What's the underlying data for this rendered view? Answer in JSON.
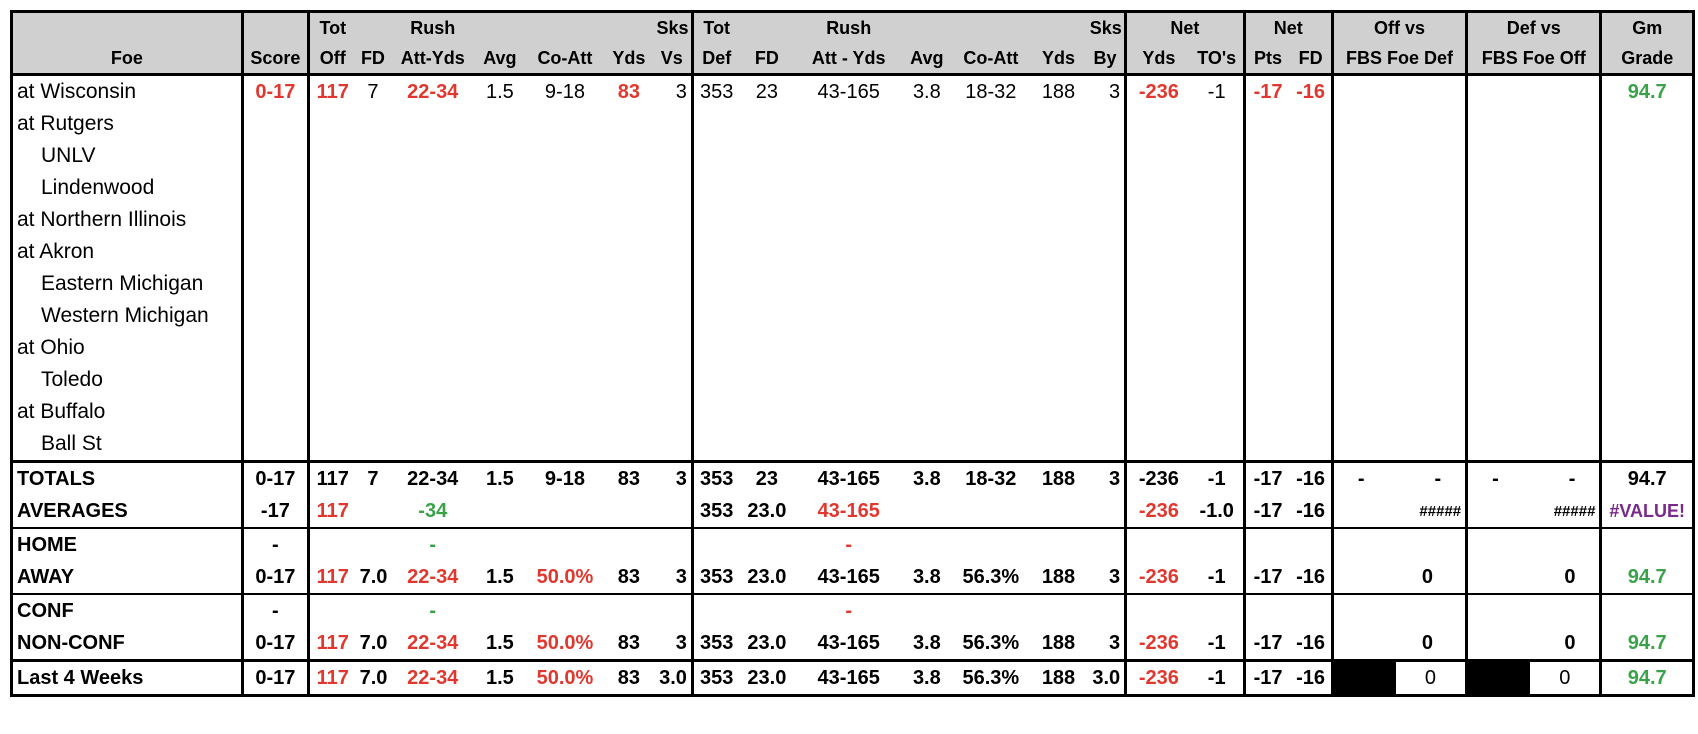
{
  "headers": {
    "top": {
      "tot1": "Tot",
      "rush1": "Rush",
      "sks1": "Sks",
      "tot2": "Tot",
      "rush2": "Rush",
      "sks2": "Sks",
      "net1": "Net",
      "net2": "Net",
      "offvs": "Off vs",
      "defvs": "Def vs",
      "gm": "Gm"
    },
    "bottom": {
      "foe": "Foe",
      "score": "Score",
      "off": "Off",
      "fd1": "FD",
      "attyds1": "Att-Yds",
      "avg1": "Avg",
      "coatt1": "Co-Att",
      "yds1": "Yds",
      "vs": "Vs",
      "def": "Def",
      "fd2": "FD",
      "attyds2": "Att - Yds",
      "avg2": "Avg",
      "coatt2": "Co-Att",
      "yds2": "Yds",
      "by": "By",
      "netyds": "Yds",
      "tos": "TO's",
      "pts": "Pts",
      "fd3": "FD",
      "fbsdef": "FBS Foe Def",
      "fbsoff": "FBS Foe Off",
      "grade": "Grade"
    }
  },
  "games": [
    {
      "foe": "at Wisconsin",
      "indent": false,
      "score": "0-17",
      "off": "117",
      "fd": "7",
      "rush": "22-34",
      "avg": "1.5",
      "coatt": "9-18",
      "yds": "83",
      "sks": "3",
      "def": "353",
      "dfd": "23",
      "drush": "43-165",
      "davg": "3.8",
      "dcoatt": "18-32",
      "dyds": "188",
      "dsks": "3",
      "netyds": "-236",
      "tos": "-1",
      "pts": "-17",
      "netfd": "-16",
      "grade": "94.7"
    },
    {
      "foe": "at Rutgers",
      "indent": false
    },
    {
      "foe": "UNLV",
      "indent": true
    },
    {
      "foe": "Lindenwood",
      "indent": true
    },
    {
      "foe": "at Northern Illinois",
      "indent": false
    },
    {
      "foe": "at Akron",
      "indent": false
    },
    {
      "foe": "Eastern Michigan",
      "indent": true
    },
    {
      "foe": "Western Michigan",
      "indent": true
    },
    {
      "foe": "at Ohio",
      "indent": false
    },
    {
      "foe": "Toledo",
      "indent": true
    },
    {
      "foe": "at Buffalo",
      "indent": false
    },
    {
      "foe": "Ball St",
      "indent": true
    }
  ],
  "totals": {
    "label": "TOTALS",
    "score": "0-17",
    "off": "117",
    "fd": "7",
    "rush": "22-34",
    "avg": "1.5",
    "coatt": "9-18",
    "yds": "83",
    "sks": "3",
    "def": "353",
    "dfd": "23",
    "drush": "43-165",
    "davg": "3.8",
    "dcoatt": "18-32",
    "dyds": "188",
    "dsks": "3",
    "netyds": "-236",
    "tos": "-1",
    "pts": "-17",
    "netfd": "-16",
    "offa": "-",
    "offb": "-",
    "defa": "-",
    "defb": "-",
    "grade": "94.7"
  },
  "averages": {
    "label": "AVERAGES",
    "score": "-17",
    "off": "117",
    "rush": "-34",
    "def": "353",
    "dfd": "23.0",
    "drush": "43-165",
    "netyds": "-236",
    "tos": "-1.0",
    "pts": "-17",
    "netfd": "-16",
    "offvs": "#####",
    "defvs": "#####",
    "grade": "#VALUE!"
  },
  "home": {
    "label": "HOME",
    "score": "-",
    "rush": "-",
    "drush": "-"
  },
  "away": {
    "label": "AWAY",
    "score": "0-17",
    "off": "117",
    "fd": "7.0",
    "rush": "22-34",
    "avg": "1.5",
    "coatt": "50.0%",
    "yds": "83",
    "sks": "3",
    "def": "353",
    "dfd": "23.0",
    "drush": "43-165",
    "davg": "3.8",
    "dcoatt": "56.3%",
    "dyds": "188",
    "dsks": "3",
    "netyds": "-236",
    "tos": "-1",
    "pts": "-17",
    "netfd": "-16",
    "offvs": "0",
    "defvs": "0",
    "grade": "94.7"
  },
  "conf": {
    "label": "CONF",
    "score": "-",
    "rush": "-",
    "drush": "-"
  },
  "nonconf": {
    "label": "NON-CONF",
    "score": "0-17",
    "off": "117",
    "fd": "7.0",
    "rush": "22-34",
    "avg": "1.5",
    "coatt": "50.0%",
    "yds": "83",
    "sks": "3",
    "def": "353",
    "dfd": "23.0",
    "drush": "43-165",
    "davg": "3.8",
    "dcoatt": "56.3%",
    "dyds": "188",
    "dsks": "3",
    "netyds": "-236",
    "tos": "-1",
    "pts": "-17",
    "netfd": "-16",
    "offvs": "0",
    "defvs": "0",
    "grade": "94.7"
  },
  "last4": {
    "label": "Last 4 Weeks",
    "score": "0-17",
    "off": "117",
    "fd": "7.0",
    "rush": "22-34",
    "avg": "1.5",
    "coatt": "50.0%",
    "yds": "83",
    "sks": "3.0",
    "def": "353",
    "dfd": "23.0",
    "drush": "43-165",
    "davg": "3.8",
    "dcoatt": "56.3%",
    "dyds": "188",
    "dsks": "3.0",
    "netyds": "-236",
    "tos": "-1",
    "pts": "-17",
    "netfd": "-16",
    "offvs": "0",
    "defvs": "0",
    "grade": "94.7"
  },
  "colors": {
    "red": "#e0382f",
    "green": "#3aa34a",
    "purple": "#7a2a8a",
    "header": "#d0d0d0"
  }
}
